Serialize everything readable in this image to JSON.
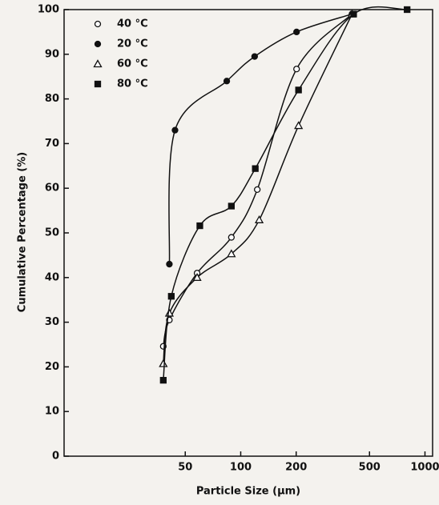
{
  "chart_data": {
    "type": "line",
    "xlabel": "Particle Size (μm)",
    "ylabel": "Cumulative Percentage (%)",
    "xscale": "log",
    "xlim": [
      11,
      1100
    ],
    "xticks": [
      50,
      100,
      200,
      500,
      1000
    ],
    "ylim": [
      0,
      100
    ],
    "yticks": [
      0,
      10,
      20,
      30,
      40,
      50,
      60,
      70,
      80,
      90,
      100
    ],
    "series": [
      {
        "name": "40 °C",
        "color": "#111111",
        "marker": "open-circle",
        "x": [
          38,
          41,
          58,
          89,
          123,
          201,
          402
        ],
        "values": [
          24.6,
          30.5,
          41,
          49,
          59.7,
          86.7,
          99
        ]
      },
      {
        "name": "20 °C",
        "color": "#111111",
        "marker": "filled-circle",
        "x": [
          41,
          44,
          84,
          119,
          201,
          402
        ],
        "values": [
          43,
          73,
          84,
          89.5,
          95,
          99
        ]
      },
      {
        "name": "60 °C",
        "color": "#111111",
        "marker": "open-triangle",
        "x": [
          38,
          41,
          58,
          89,
          126,
          206,
          402
        ],
        "values": [
          20.7,
          32,
          40,
          45.3,
          52.9,
          74,
          99
        ]
      },
      {
        "name": "80 °C",
        "color": "#111111",
        "marker": "filled-square",
        "x": [
          38,
          42,
          60,
          89,
          120,
          206,
          410,
          800
        ],
        "values": [
          17,
          35.8,
          51.6,
          56,
          64.4,
          82,
          99,
          100
        ]
      }
    ]
  }
}
